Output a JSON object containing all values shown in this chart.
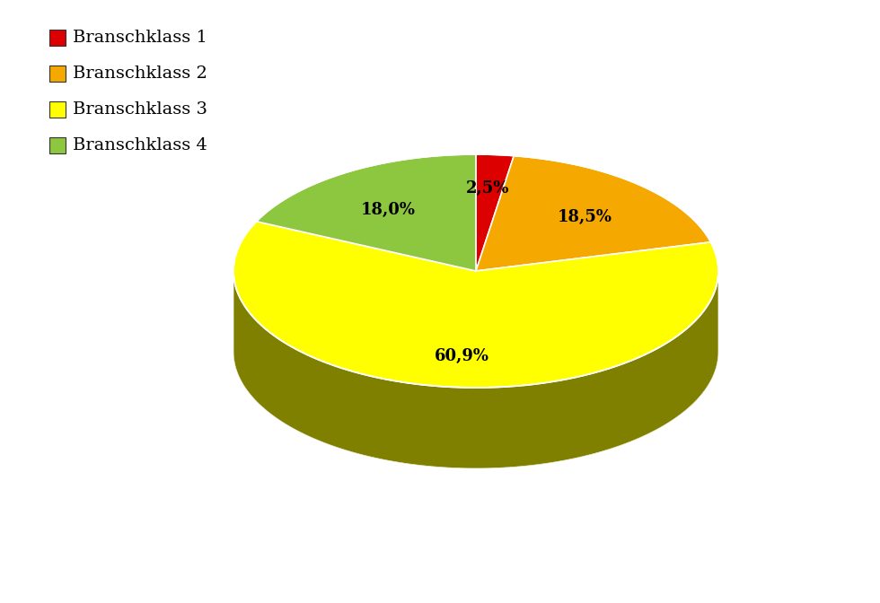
{
  "labels": [
    "Branschklass 1",
    "Branschklass 2",
    "Branschklass 3",
    "Branschklass 4"
  ],
  "values": [
    2.5,
    18.5,
    60.9,
    18.0
  ],
  "colors_top": [
    "#dd0000",
    "#f5a800",
    "#ffff00",
    "#8dc63f"
  ],
  "colors_side": [
    "#880000",
    "#6b4c00",
    "#808000",
    "#3a5e1a"
  ],
  "legend_colors": [
    "#dd0000",
    "#f5a800",
    "#ffff00",
    "#8dc63f"
  ],
  "label_texts": [
    "2,5%",
    "18,5%",
    "60,9%",
    "18,0%"
  ],
  "background_color": "#ffffff",
  "text_color": "#000000",
  "legend_fontsize": 14,
  "label_fontsize": 13
}
